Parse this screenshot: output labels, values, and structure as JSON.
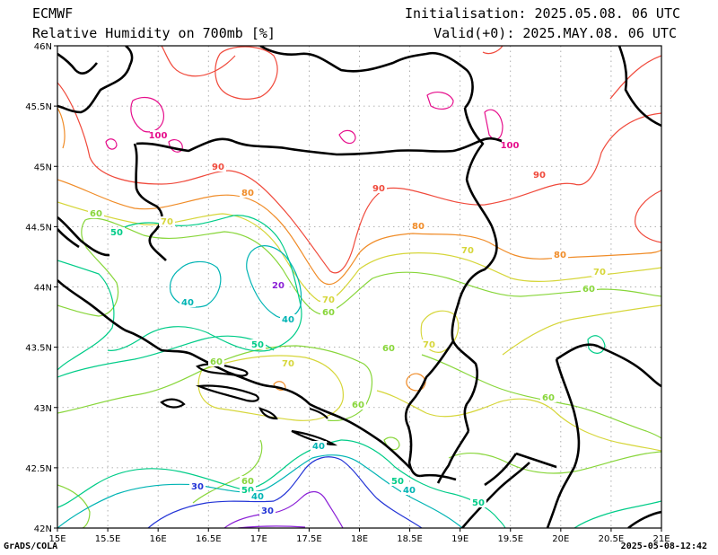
{
  "header": {
    "model": "ECMWF",
    "title": "Relative Humidity on 700mb [%]",
    "init": "Initialisation: 2025.05.08. 06 UTC",
    "valid": "Valid(+0): 2025.MAY.08. 06 UTC"
  },
  "footer": {
    "software": "GrADS/COLA",
    "timestamp": "2025-05-08-12:42"
  },
  "axes": {
    "x_ticks": [
      "15E",
      "15.5E",
      "16E",
      "16.5E",
      "17E",
      "17.5E",
      "18E",
      "18.5E",
      "19E",
      "19.5E",
      "20E",
      "20.5E",
      "21E"
    ],
    "y_ticks": [
      "42N",
      "42.5N",
      "43N",
      "43.5N",
      "44N",
      "44.5N",
      "45N",
      "45.5N",
      "46N"
    ],
    "lon_range": [
      15,
      21
    ],
    "lat_range": [
      42,
      46
    ],
    "grid": "dotted"
  },
  "contour_colors": {
    "20": "#8a1fd6",
    "30": "#2233d6",
    "40": "#00b4b4",
    "50": "#00cc88",
    "60": "#88d63a",
    "70": "#d6d63a",
    "80": "#f08c28",
    "90": "#f04a3c",
    "100": "#e60f8c"
  },
  "contour_labels": [
    {
      "text": "100",
      "color": "#e60f8c"
    },
    {
      "text": "100",
      "color": "#e60f8c"
    },
    {
      "text": "90",
      "color": "#f04a3c"
    },
    {
      "text": "90",
      "color": "#f04a3c"
    },
    {
      "text": "90",
      "color": "#f04a3c"
    },
    {
      "text": "80",
      "color": "#f08c28"
    },
    {
      "text": "80",
      "color": "#f08c28"
    },
    {
      "text": "80",
      "color": "#f08c28"
    },
    {
      "text": "70",
      "color": "#d6d63a"
    },
    {
      "text": "70",
      "color": "#d6d63a"
    },
    {
      "text": "70",
      "color": "#d6d63a"
    },
    {
      "text": "70",
      "color": "#d6d63a"
    },
    {
      "text": "70",
      "color": "#d6d63a"
    },
    {
      "text": "70",
      "color": "#d6d63a"
    },
    {
      "text": "60",
      "color": "#88d63a"
    },
    {
      "text": "60",
      "color": "#88d63a"
    },
    {
      "text": "60",
      "color": "#88d63a"
    },
    {
      "text": "60",
      "color": "#88d63a"
    },
    {
      "text": "60",
      "color": "#88d63a"
    },
    {
      "text": "60",
      "color": "#88d63a"
    },
    {
      "text": "60",
      "color": "#88d63a"
    },
    {
      "text": "60",
      "color": "#88d63a"
    },
    {
      "text": "50",
      "color": "#00cc88"
    },
    {
      "text": "50",
      "color": "#00cc88"
    },
    {
      "text": "50",
      "color": "#00cc88"
    },
    {
      "text": "50",
      "color": "#00cc88"
    },
    {
      "text": "50",
      "color": "#00cc88"
    },
    {
      "text": "40",
      "color": "#00b4b4"
    },
    {
      "text": "40",
      "color": "#00b4b4"
    },
    {
      "text": "40",
      "color": "#00b4b4"
    },
    {
      "text": "40",
      "color": "#00b4b4"
    },
    {
      "text": "40",
      "color": "#00b4b4"
    },
    {
      "text": "30",
      "color": "#2233d6"
    },
    {
      "text": "30",
      "color": "#2233d6"
    },
    {
      "text": "20",
      "color": "#8a1fd6"
    }
  ]
}
